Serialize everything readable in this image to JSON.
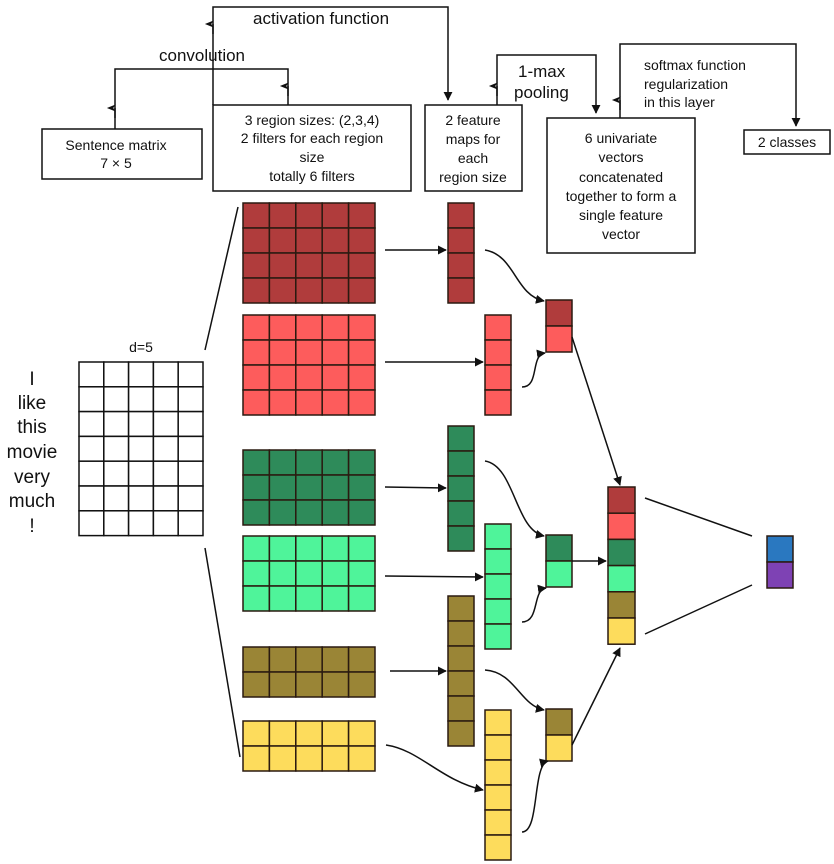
{
  "labels": {
    "activation": "activation function",
    "convolution": "convolution",
    "pooling": [
      "1-max",
      "pooling"
    ],
    "softmax": [
      "softmax function",
      "regularization",
      "in this layer"
    ],
    "d": "d=5"
  },
  "boxes": {
    "sentence": [
      "Sentence matrix",
      "7 × 5"
    ],
    "region": [
      "3 region sizes: (2,3,4)",
      "2 filters for each region",
      "size",
      "totally 6 filters"
    ],
    "feature": [
      "2 feature",
      "maps for",
      "each",
      "region size"
    ],
    "univariate": [
      "6 univariate",
      "vectors",
      "concatenated",
      "together to form a",
      "single feature",
      "vector"
    ],
    "classes": [
      "2 classes"
    ]
  },
  "sentence_words": [
    "I",
    "like",
    "this",
    "movie",
    "very",
    "much",
    "!"
  ],
  "sentence_matrix": {
    "rows": 7,
    "cols": 5
  },
  "filters": [
    {
      "region_size": 4,
      "color": "#b03c3c"
    },
    {
      "region_size": 4,
      "color": "#fd5c5c"
    },
    {
      "region_size": 3,
      "color": "#2e8b5a"
    },
    {
      "region_size": 3,
      "color": "#4ff49a"
    },
    {
      "region_size": 2,
      "color": "#9a8536"
    },
    {
      "region_size": 2,
      "color": "#fddc5c"
    }
  ],
  "feature_map_lengths": [
    4,
    4,
    5,
    5,
    6,
    6
  ],
  "output_classes_colors": [
    "#2a78c0",
    "#7e42b4"
  ]
}
